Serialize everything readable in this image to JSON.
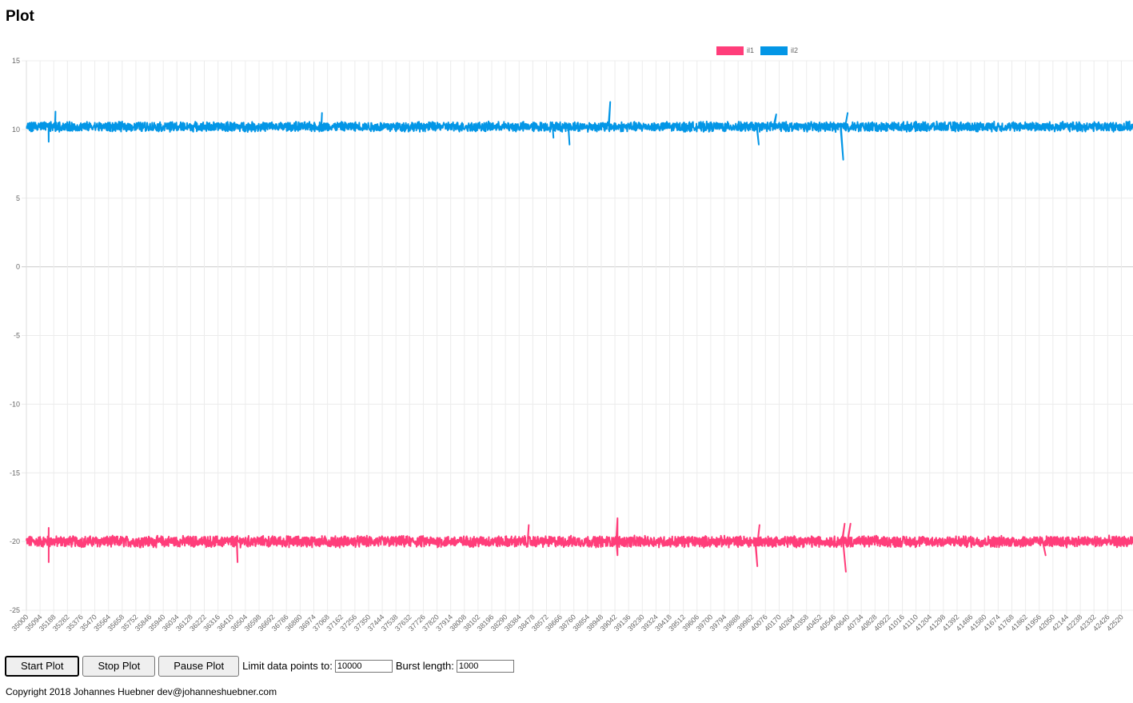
{
  "page": {
    "title": "Plot"
  },
  "controls": {
    "start_label": "Start Plot",
    "stop_label": "Stop Plot",
    "pause_label": "Pause Plot",
    "limit_label": "Limit data points to:",
    "limit_value": "10000",
    "burst_label": "Burst length:",
    "burst_value": "1000"
  },
  "footer": {
    "text": "Copyright 2018 Johannes Huebner dev@johanneshuebner.com"
  },
  "chart_data": {
    "type": "line",
    "title": "",
    "xlabel": "",
    "ylabel": "",
    "xlim": [
      35000,
      42600
    ],
    "ylim": [
      -25,
      15
    ],
    "y_ticks": [
      15,
      10,
      5,
      0,
      -5,
      -10,
      -15,
      -20,
      -25
    ],
    "x_tick_step": 94,
    "grid": true,
    "legend_position": "top",
    "series": [
      {
        "name": "il1",
        "color": "#ff3d7a",
        "baseline": -20,
        "noise": 0.35,
        "spikes": [
          {
            "x": 35153,
            "y": -21.5
          },
          {
            "x": 35153,
            "y": -19
          },
          {
            "x": 36450,
            "y": -21.5
          },
          {
            "x": 38450,
            "y": -18.8
          },
          {
            "x": 39060,
            "y": -18.3
          },
          {
            "x": 39060,
            "y": -21
          },
          {
            "x": 40020,
            "y": -21.8
          },
          {
            "x": 40035,
            "y": -18.8
          },
          {
            "x": 40620,
            "y": -18.7
          },
          {
            "x": 40628,
            "y": -22.2
          },
          {
            "x": 40660,
            "y": -18.7
          },
          {
            "x": 42000,
            "y": -21
          }
        ]
      },
      {
        "name": "il2",
        "color": "#0396e6",
        "baseline": 10.2,
        "noise": 0.3,
        "spikes": [
          {
            "x": 35153,
            "y": 9.1
          },
          {
            "x": 35200,
            "y": 11.3
          },
          {
            "x": 37030,
            "y": 11.2
          },
          {
            "x": 38730,
            "y": 8.9
          },
          {
            "x": 38620,
            "y": 9.4
          },
          {
            "x": 39010,
            "y": 12
          },
          {
            "x": 40030,
            "y": 8.9
          },
          {
            "x": 40150,
            "y": 11.1
          },
          {
            "x": 40610,
            "y": 7.8
          },
          {
            "x": 40640,
            "y": 11.2
          }
        ]
      }
    ]
  }
}
